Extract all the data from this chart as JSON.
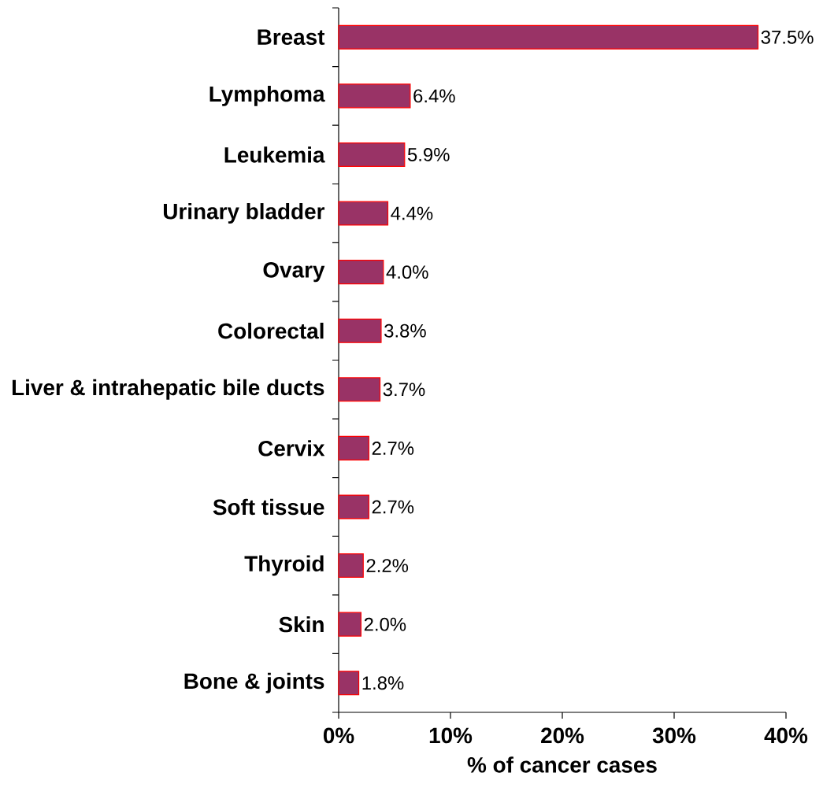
{
  "chart_data": {
    "type": "bar",
    "orientation": "horizontal",
    "xlabel": "% of  cancer cases",
    "categories": [
      "Breast",
      "Lymphoma",
      "Leukemia",
      "Urinary bladder",
      "Ovary",
      "Colorectal",
      "Liver & intrahepatic bile ducts",
      "Cervix",
      "Soft tissue",
      "Thyroid",
      "Skin",
      "Bone & joints"
    ],
    "values": [
      37.5,
      6.4,
      5.9,
      4.4,
      4.0,
      3.8,
      3.7,
      2.7,
      2.7,
      2.2,
      2.0,
      1.8
    ],
    "value_labels": [
      "37.5%",
      "6.4%",
      "5.9%",
      "4.4%",
      "4.0%",
      "3.8%",
      "3.7%",
      "2.7%",
      "2.7%",
      "2.2%",
      "2.0%",
      "1.8%"
    ],
    "color": "#993366",
    "xlim": [
      0,
      40
    ],
    "xticks": [
      {
        "value": 0,
        "label": "0%"
      },
      {
        "value": 10,
        "label": "10%"
      },
      {
        "value": 20,
        "label": "20%"
      },
      {
        "value": 30,
        "label": "30%"
      },
      {
        "value": 40,
        "label": "40%"
      }
    ],
    "grid": false
  }
}
